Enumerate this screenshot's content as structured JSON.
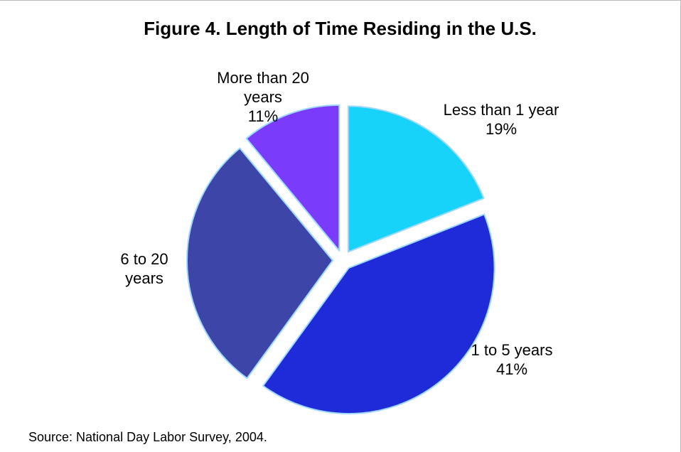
{
  "chart_data": {
    "type": "pie",
    "title": "Figure 4. Length of Time Residing in the U.S.",
    "categories": [
      "Less than 1 year",
      "1 to 5 years",
      "6 to 20 years",
      "More than 20 years"
    ],
    "values": [
      19,
      41,
      29,
      11
    ],
    "value_labels": [
      "19%",
      "41%",
      null,
      "11%"
    ],
    "colors": [
      "#17d3f9",
      "#1f2bd8",
      "#3e45a8",
      "#7a3cfa"
    ],
    "source": "Source: National Day Labor Survey, 2004."
  }
}
